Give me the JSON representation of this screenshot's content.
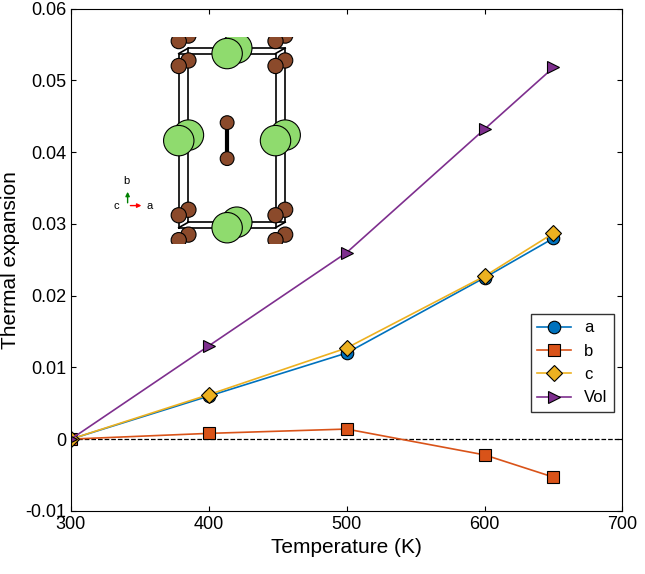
{
  "chart_data": {
    "type": "line",
    "x_label": "Temperature (K)",
    "y_label": "Thermal expansion",
    "x": [
      300,
      400,
      500,
      600,
      650
    ],
    "series": [
      {
        "name": "a",
        "color": "#0072BD",
        "marker": "circle",
        "values": [
          0,
          0.006,
          0.012,
          0.0225,
          0.028
        ]
      },
      {
        "name": "b",
        "color": "#D95319",
        "marker": "square",
        "values": [
          0,
          0.0008,
          0.0014,
          -0.0022,
          -0.0053
        ]
      },
      {
        "name": "c",
        "color": "#EDB120",
        "marker": "diamond",
        "values": [
          0,
          0.0062,
          0.0127,
          0.0227,
          0.0287
        ]
      },
      {
        "name": "Vol",
        "color": "#7E2F8E",
        "marker": "triangle_right",
        "values": [
          0,
          0.013,
          0.026,
          0.0432,
          0.0518
        ]
      }
    ],
    "xlim": [
      300,
      700
    ],
    "xticks": [
      300,
      400,
      500,
      600,
      700
    ],
    "ylim": [
      -0.01,
      0.06
    ],
    "yticks": [
      -0.01,
      0,
      0.01,
      0.02,
      0.03,
      0.04,
      0.05,
      0.06
    ],
    "zero_line": 0,
    "legend": "lower right",
    "grid": false,
    "annotations": [
      "b",
      "c",
      "a"
    ]
  }
}
